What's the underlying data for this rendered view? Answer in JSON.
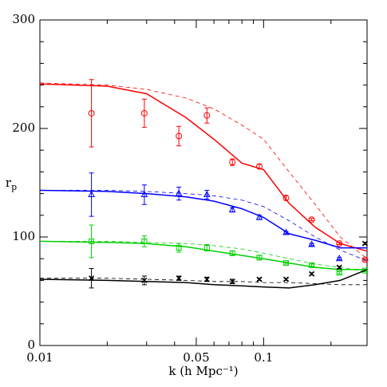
{
  "chart_data": {
    "type": "scatter",
    "xlabel": "k (h Mpc⁻¹)",
    "ylabel": "r",
    "ylabel_sub": "p",
    "xscale": "log",
    "xlim": [
      0.01,
      0.29
    ],
    "ylim": [
      0,
      300
    ],
    "xticks": [
      0.01,
      0.05,
      0.1
    ],
    "yticks": [
      0,
      100,
      200,
      300
    ],
    "xminor_ticks": [
      0.02,
      0.03,
      0.04,
      0.06,
      0.07,
      0.08,
      0.09,
      0.2
    ],
    "yminor_ticks": [
      20,
      40,
      60,
      80,
      120,
      140,
      160,
      180,
      220,
      240,
      260,
      280
    ],
    "x": [
      0.017,
      0.0293,
      0.0418,
      0.0558,
      0.0725,
      0.0957,
      0.126,
      0.164,
      0.218,
      0.284
    ],
    "curve_x": [
      0.01,
      0.02,
      0.03,
      0.045,
      0.06,
      0.08,
      0.1,
      0.13,
      0.17,
      0.22,
      0.29
    ],
    "series": [
      {
        "color": "#ff0000",
        "marker": "circle",
        "values": [
          214,
          214,
          193,
          212,
          169,
          165,
          136,
          116,
          94,
          79
        ],
        "errors": [
          31,
          13,
          9,
          7,
          3,
          2,
          2,
          1,
          1,
          1
        ],
        "solid": [
          241,
          239,
          232,
          210,
          190,
          168,
          162,
          131,
          109,
          94,
          87
        ],
        "dashed": [
          242,
          240,
          236,
          228,
          218,
          203,
          190,
          160,
          130,
          100,
          80
        ]
      },
      {
        "color": "#0000ff",
        "marker": "triangle",
        "values": [
          139,
          139,
          140,
          139,
          125,
          118,
          104,
          93,
          80,
          null
        ],
        "errors": [
          20,
          9,
          6,
          4,
          2,
          2,
          1,
          1,
          1,
          null
        ],
        "solid": [
          143,
          142,
          140,
          137,
          133,
          126,
          118,
          103,
          97,
          90,
          90
        ],
        "dashed": [
          143,
          143,
          142,
          140,
          138,
          134,
          128,
          115,
          100,
          88,
          78
        ]
      },
      {
        "color": "#00d000",
        "marker": "square",
        "values": [
          96,
          96,
          90,
          90,
          85,
          81,
          76,
          74,
          67,
          69
        ],
        "errors": [
          15,
          5,
          4,
          3,
          2,
          2,
          1,
          1,
          1,
          1
        ],
        "solid": [
          96,
          95,
          94,
          91,
          87,
          83,
          80,
          76,
          72,
          70,
          70
        ],
        "dashed": [
          96,
          96,
          95,
          94,
          92,
          89,
          85,
          80,
          75,
          72,
          68
        ]
      },
      {
        "color": "#000000",
        "marker": "cross",
        "values": [
          62,
          60,
          62,
          61,
          59,
          61,
          61,
          66,
          72,
          94
        ],
        "errors": [
          9,
          4,
          2,
          2,
          2,
          1,
          1,
          1,
          1,
          1
        ],
        "solid": [
          61,
          60,
          59,
          58,
          56,
          55,
          54,
          53,
          56,
          60,
          70
        ],
        "dashed": [
          62,
          62,
          61,
          60,
          59,
          59,
          58,
          58,
          57,
          56,
          56
        ]
      }
    ]
  }
}
